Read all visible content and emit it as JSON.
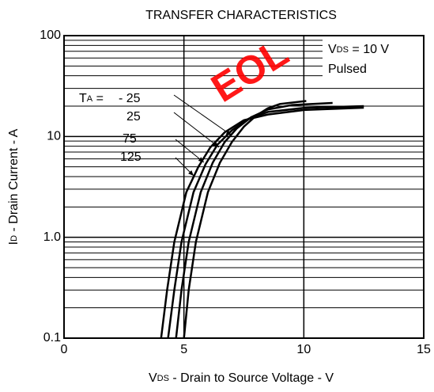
{
  "chart_data": {
    "type": "line",
    "title": "TRANSFER CHARACTERISTICS",
    "watermark": "EOL",
    "x_label": {
      "main": "V",
      "sub": "DS",
      "rest": " - Drain to Source Voltage - V"
    },
    "y_label": {
      "main": "I",
      "sub": "D",
      "rest": " - Drain Current - A"
    },
    "condition": {
      "main": "V",
      "sub": "DS",
      "rest": " = 10 V",
      "note": "Pulsed"
    },
    "temp_label": {
      "main": "T",
      "sub": "A",
      "rest": " ="
    },
    "log_y": true,
    "grid": true,
    "xlim": [
      0,
      15
    ],
    "xticks": [
      0,
      5,
      10,
      15
    ],
    "ylim": [
      0.1,
      100
    ],
    "yticks": [
      0.1,
      {
        "value": 1,
        "label": "1.0"
      },
      10,
      100
    ],
    "y_minor_grid": [
      0.2,
      0.3,
      0.4,
      0.5,
      0.6,
      0.7,
      0.8,
      0.9,
      2,
      3,
      4,
      5,
      6,
      7,
      8,
      9,
      20,
      30,
      40,
      50,
      60,
      70,
      80,
      90
    ],
    "series": [
      {
        "name": "- 25",
        "color": "#000",
        "x": [
          5.0,
          5.2,
          5.5,
          6.0,
          6.5,
          7.0,
          7.5,
          8.0,
          8.5,
          9.0,
          10.1
        ],
        "values": [
          0.1,
          0.3,
          0.9,
          2.8,
          5.5,
          8.8,
          12.5,
          16,
          19,
          21,
          22.5
        ]
      },
      {
        "name": "25",
        "color": "#000",
        "x": [
          4.67,
          4.9,
          5.2,
          5.7,
          6.2,
          6.7,
          7.2,
          7.8,
          8.5,
          9.5,
          11.2
        ],
        "values": [
          0.1,
          0.3,
          0.9,
          2.8,
          5.5,
          8.8,
          12,
          15.5,
          18.5,
          20.5,
          21.5
        ]
      },
      {
        "name": "75",
        "color": "#000",
        "x": [
          4.34,
          4.6,
          4.9,
          5.4,
          5.9,
          6.4,
          7.0,
          7.7,
          8.5,
          10,
          12.5
        ],
        "values": [
          0.1,
          0.3,
          0.9,
          2.8,
          5.3,
          8.3,
          11.5,
          15,
          17.5,
          19.2,
          20
        ]
      },
      {
        "name": "125",
        "color": "#000",
        "x": [
          4.05,
          4.3,
          4.6,
          5.1,
          5.6,
          6.1,
          6.7,
          7.5,
          8.5,
          10,
          12.5
        ],
        "values": [
          0.1,
          0.3,
          0.9,
          2.8,
          5,
          7.8,
          11,
          14.5,
          16.5,
          18.3,
          19.3
        ]
      }
    ]
  }
}
